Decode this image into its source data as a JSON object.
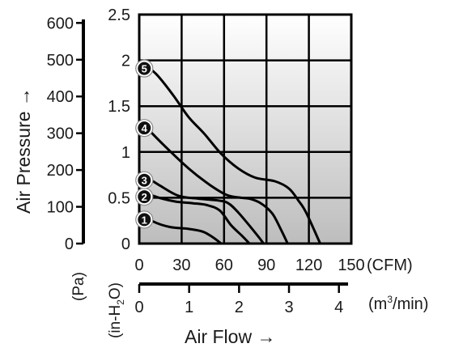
{
  "chart_data": {
    "type": "line",
    "title": "",
    "xlabel": "Air Flow →",
    "ylabel": "Air Pressure →",
    "grid": true,
    "x_unit_primary": "(CFM)",
    "x_unit_secondary_base": "(m",
    "x_unit_secondary_sup": "3",
    "x_unit_secondary_end": "/min)",
    "y_unit_primary_main": "(in-H",
    "y_unit_primary_sub": "2",
    "y_unit_primary_end": "O)",
    "y_unit_secondary": "(Pa)",
    "xlim": [
      0,
      150
    ],
    "ylim": [
      0,
      2.5
    ],
    "x_ticks": [
      "0",
      "30",
      "60",
      "90",
      "120",
      "150"
    ],
    "y_ticks": [
      "0",
      "0.5",
      "1",
      "1.5",
      "2",
      "2.5"
    ],
    "x2_ticks": [
      "0",
      "1",
      "2",
      "3",
      "4"
    ],
    "y2_ticks": [
      "0",
      "100",
      "200",
      "300",
      "400",
      "500",
      "600"
    ],
    "x2_tick_values": [
      0,
      1,
      2,
      3,
      4
    ],
    "y2_tick_values": [
      0,
      100,
      200,
      300,
      400,
      500,
      600
    ],
    "x2_per_x": 0.02832,
    "y2_per_y": 249.1,
    "series": [
      {
        "name": "1",
        "x": [
          0,
          10,
          22,
          35,
          45,
          52,
          58
        ],
        "y": [
          0.35,
          0.24,
          0.18,
          0.16,
          0.13,
          0.07,
          0
        ]
      },
      {
        "name": "2",
        "x": [
          0,
          10,
          25,
          38,
          48,
          57,
          65,
          73,
          78
        ],
        "y": [
          0.6,
          0.52,
          0.46,
          0.44,
          0.42,
          0.36,
          0.2,
          0.08,
          0
        ]
      },
      {
        "name": "3",
        "x": [
          0,
          15,
          28,
          42,
          56,
          63,
          70,
          82,
          88
        ],
        "y": [
          0.78,
          0.63,
          0.52,
          0.49,
          0.47,
          0.44,
          0.34,
          0.12,
          0
        ]
      },
      {
        "name": "4",
        "x": [
          0,
          17,
          35,
          50,
          62,
          72,
          78,
          86,
          94,
          100,
          105
        ],
        "y": [
          1.35,
          1.08,
          0.82,
          0.64,
          0.53,
          0.5,
          0.49,
          0.44,
          0.33,
          0.16,
          0
        ]
      },
      {
        "name": "5",
        "x": [
          0,
          12,
          24,
          35,
          46,
          58,
          70,
          82,
          96,
          106,
          113,
          118,
          128
        ],
        "y": [
          2.0,
          1.85,
          1.62,
          1.38,
          1.2,
          0.98,
          0.82,
          0.72,
          0.68,
          0.6,
          0.46,
          0.34,
          0
        ]
      }
    ]
  }
}
